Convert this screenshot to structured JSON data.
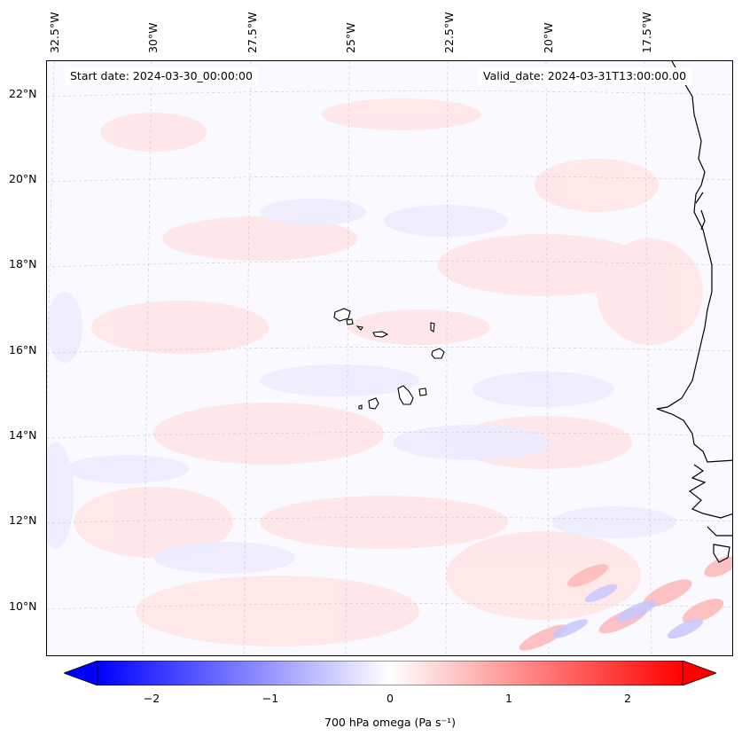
{
  "map": {
    "start_date": "Start date: 2024-03-30_00:00:00",
    "valid_date": "Valid_date: 2024-03-31T13:00:00.00",
    "longitude_labels": [
      "32.5°W",
      "30°W",
      "27.5°W",
      "25°W",
      "22.5°W",
      "20°W",
      "17.5°W"
    ],
    "latitude_labels": [
      "22°N",
      "20°N",
      "18°N",
      "16°N",
      "14°N",
      "12°N",
      "10°N"
    ],
    "field": "700 hPa omega",
    "colormap": "bwr",
    "colors": {
      "negative": "#0000ff",
      "zero": "#ffffff",
      "positive": "#ff0000",
      "coastline": "#000000",
      "gridline": "#bbbbbb"
    }
  },
  "colorbar": {
    "label": "700 hPa omega (Pa s⁻¹)",
    "ticks": [
      "−2",
      "−1",
      "0",
      "1",
      "2"
    ],
    "range": [
      -2.6,
      2.6
    ],
    "extend": "both"
  }
}
